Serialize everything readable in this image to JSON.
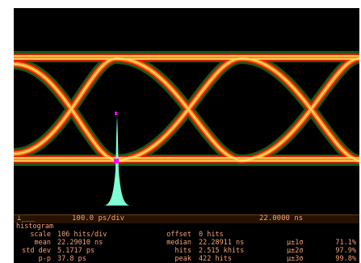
{
  "timebar": {
    "left_marker": "⊥___",
    "scale": "100.0 ps/div",
    "position": "22.0000 ns"
  },
  "histogram": {
    "title": "histogram",
    "labels": {
      "scale": "scale",
      "mean": "mean",
      "std_dev": "std dev",
      "p_p": "p-p",
      "offset": "offset",
      "median": "median",
      "hits": "hits",
      "peak": "peak",
      "sigma1": "μ±1σ",
      "sigma2": "μ±2σ",
      "sigma3": "μ±3σ"
    },
    "values": {
      "scale": "106 hits/div",
      "mean": "22.29010 ns",
      "std_dev": "5.1717 ps",
      "p_p": "37.8 ps",
      "offset": "0 hits",
      "median": "22.28911 ns",
      "hits": "2.515 khits",
      "peak": "422 hits",
      "sigma1": "71.1%",
      "sigma2": "97.9%",
      "sigma3": "99.8%"
    }
  },
  "colors": {
    "trace_hot": "#e02000",
    "trace_mid": "#ff8c1a",
    "trace_core": "#ffe070",
    "trace_fringe": "#2fa02f",
    "histogram": "#7fffd4",
    "marker": "#ff00ff",
    "text": "#f4a27a"
  }
}
